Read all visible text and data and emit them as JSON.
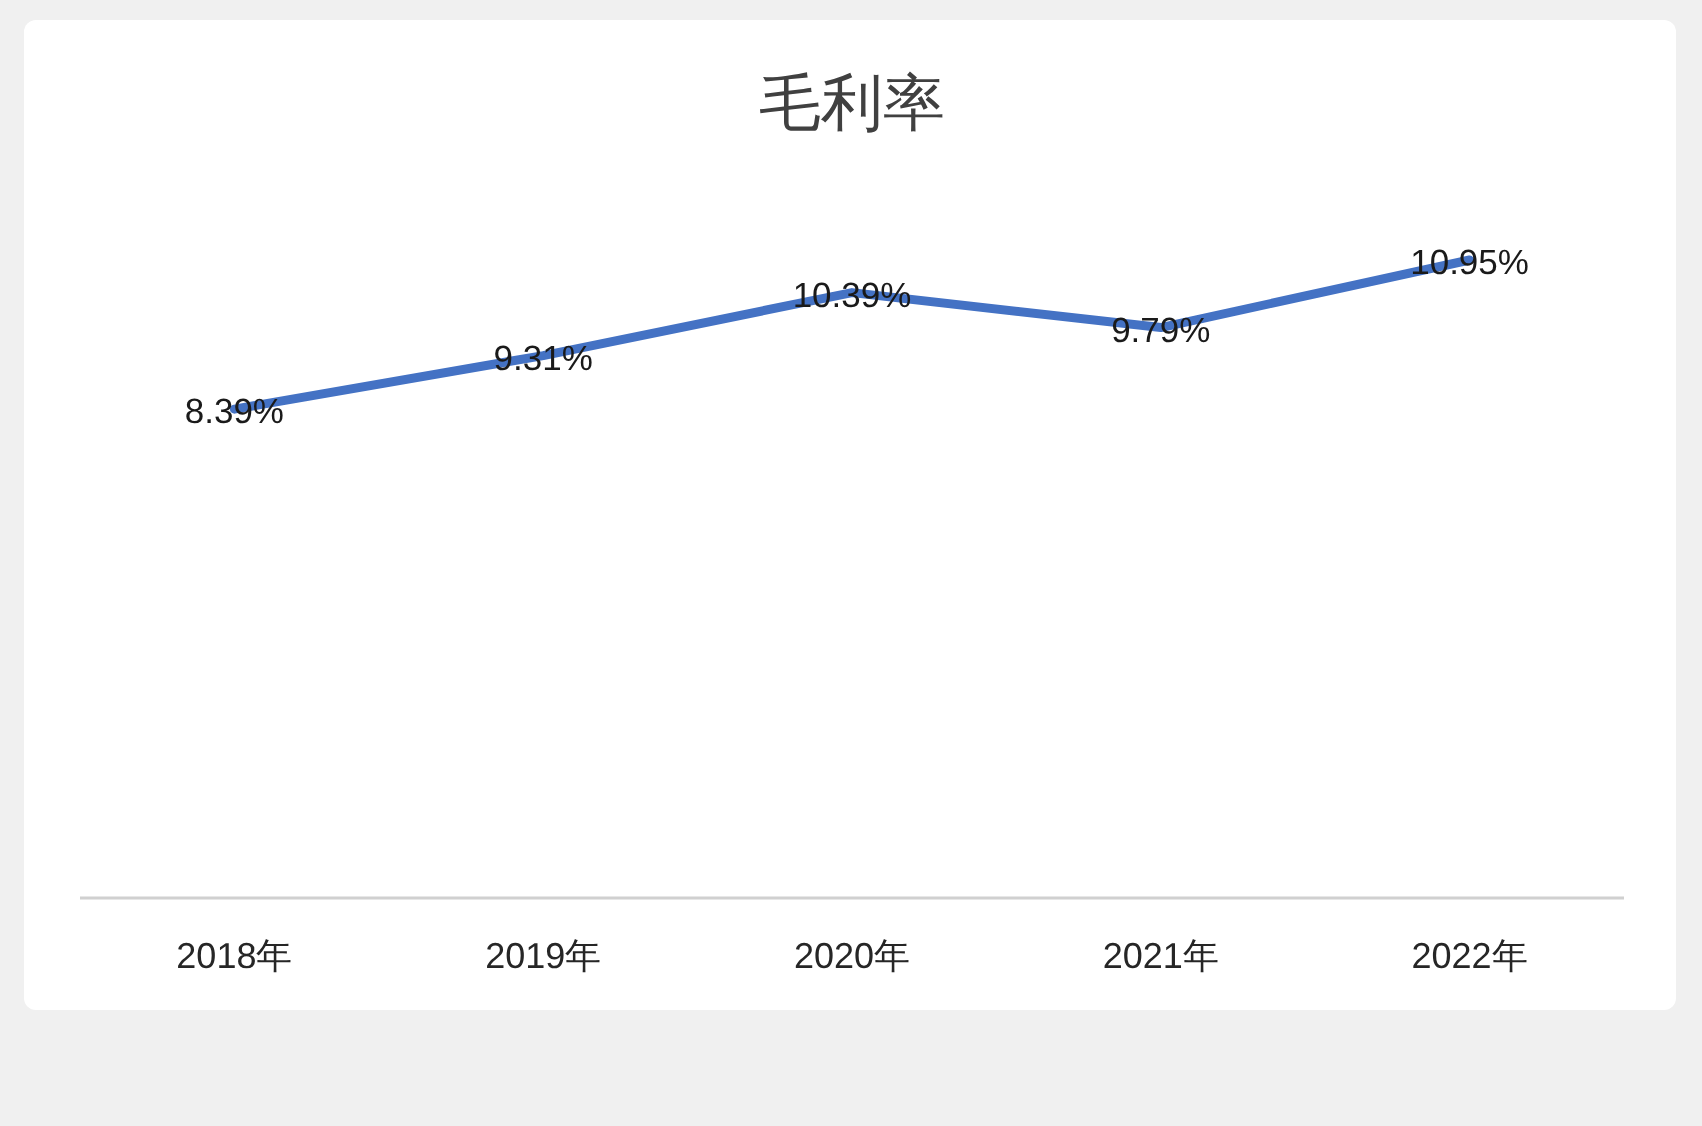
{
  "chart_data": {
    "type": "line",
    "title": "毛利率",
    "categories": [
      "2018年",
      "2019年",
      "2020年",
      "2021年",
      "2022年"
    ],
    "series": [
      {
        "color": "#4472c4",
        "values": [
          8.39,
          9.31,
          10.39,
          9.79,
          10.95
        ],
        "value_labels": [
          "8.39%",
          "9.31%",
          "10.39%",
          "9.79%",
          "10.95%"
        ]
      }
    ],
    "tick_labels": "x"
  }
}
